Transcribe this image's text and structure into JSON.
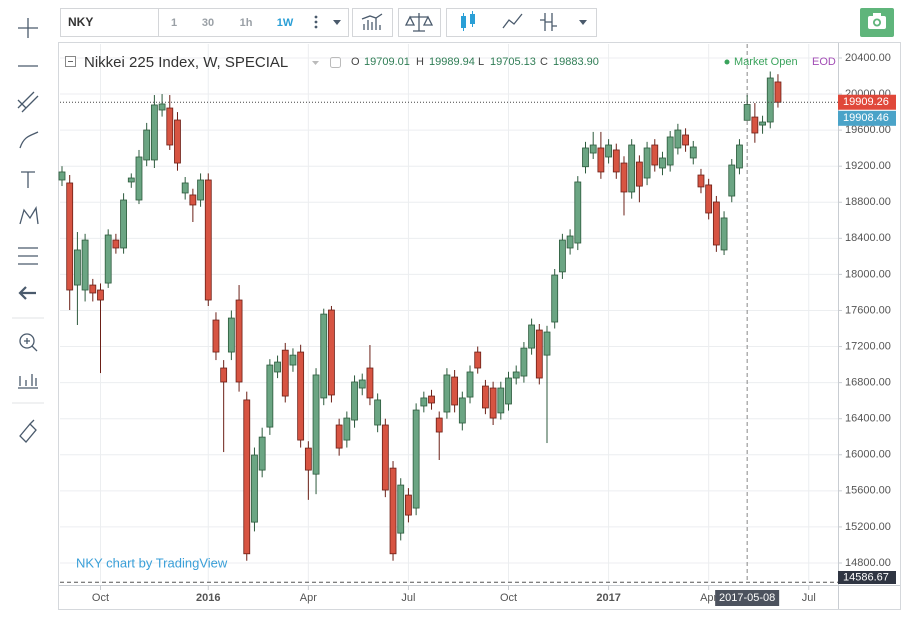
{
  "toolbar": {
    "symbol": "NKY",
    "intervals": [
      "1",
      "30",
      "1h",
      "1W"
    ]
  },
  "chart_data": {
    "type": "candlestick",
    "title": "Nikkei 225 Index, W, SPECIAL",
    "legend": {
      "labels": [
        "O",
        "H",
        "L",
        "C"
      ],
      "values": [
        "19709.01",
        "19989.94",
        "19705.13",
        "19883.90"
      ]
    },
    "market_status": "Market Open",
    "data_mode": "EOD",
    "watermark": "NKY chart by TradingView",
    "up_color": "#6ba583",
    "down_color": "#d75442",
    "categories": [
      null,
      null,
      null,
      null,
      null,
      null,
      null,
      null,
      null,
      null,
      null,
      null,
      null,
      null,
      null,
      null,
      null,
      null,
      null,
      null,
      null,
      null,
      null,
      null,
      null,
      null,
      null,
      null,
      null,
      null,
      null,
      null,
      null,
      null,
      null,
      null,
      null,
      null,
      null,
      null,
      null,
      null,
      null,
      null,
      null,
      null,
      null,
      null,
      null,
      null,
      null,
      null,
      null,
      null,
      null,
      null,
      null,
      null,
      null,
      null,
      null,
      null,
      null,
      null,
      null,
      null,
      null,
      null,
      null,
      null,
      null,
      null,
      null,
      null,
      null,
      null,
      null,
      null,
      null,
      null,
      null,
      null,
      null,
      null,
      null,
      null,
      null,
      null,
      null,
      "2017-05-08",
      null,
      null,
      null,
      null
    ],
    "open": [
      19047,
      19014,
      17882,
      17827,
      17882,
      17827,
      17904,
      18381,
      18293,
      19025,
      18825,
      19269,
      19269,
      19823,
      19845,
      19712,
      18903,
      18881,
      18825,
      19047,
      17494,
      16962,
      17139,
      17716,
      16608,
      15253,
      15830,
      16307,
      16918,
      17160,
      16995,
      17139,
      16074,
      15785,
      16630,
      17605,
      16330,
      16163,
      16385,
      16740,
      16962,
      16330,
      16330,
      15852,
      15131,
      15553,
      15409,
      16541,
      16651,
      16407,
      16474,
      16862,
      16352,
      16640,
      17139,
      16762,
      16740,
      16464,
      16563,
      16851,
      16873,
      17183,
      17383,
      17105,
      17472,
      18028,
      18293,
      18348,
      19194,
      19346,
      19402,
      19302,
      19380,
      19235,
      18914,
      19246,
      19069,
      19435,
      19180,
      19213,
      19402,
      19546,
      19291,
      19102,
      18992,
      18803,
      18271,
      18869,
      19180,
      19709.01,
      19745,
      19656,
      19690,
      20134
    ],
    "high": [
      19200,
      19102,
      18470,
      18450,
      17950,
      17900,
      18500,
      18450,
      18900,
      19120,
      19380,
      19680,
      19989,
      20000,
      19989,
      19800,
      19080,
      18950,
      19120,
      19120,
      17580,
      17050,
      17600,
      17882,
      16700,
      16080,
      16300,
      17060,
      17100,
      17240,
      17180,
      17220,
      16150,
      16960,
      17620,
      17650,
      16400,
      16480,
      16880,
      16900,
      17217,
      16680,
      16400,
      15930,
      15740,
      15630,
      16570,
      16700,
      16720,
      16480,
      16960,
      16940,
      16700,
      16990,
      17200,
      16830,
      16810,
      16810,
      16920,
      16990,
      17250,
      17510,
      17450,
      17430,
      18060,
      18450,
      18500,
      19090,
      19470,
      19580,
      19580,
      19500,
      19450,
      19310,
      19500,
      19320,
      19470,
      19500,
      19360,
      19590,
      19670,
      19620,
      19480,
      19170,
      19060,
      18870,
      18700,
      19280,
      19500,
      19989.94,
      19900,
      19760,
      20250,
      20220
    ],
    "low": [
      18980,
      17605,
      17439,
      17700,
      17700,
      16906,
      17850,
      18230,
      18230,
      18960,
      18780,
      19200,
      19180,
      19750,
      19380,
      19150,
      18830,
      18581,
      18750,
      17650,
      17050,
      16030,
      17050,
      16700,
      14825,
      15150,
      15750,
      16220,
      16850,
      16580,
      16920,
      16080,
      15500,
      15563,
      16550,
      16580,
      15990,
      16080,
      16300,
      16660,
      16550,
      16250,
      15530,
      14825,
      15050,
      15250,
      15330,
      16470,
      16500,
      15942,
      16400,
      16470,
      16270,
      16570,
      16900,
      16450,
      16330,
      16390,
      16490,
      16780,
      16800,
      17110,
      16780,
      16130,
      17400,
      17950,
      18220,
      18270,
      19120,
      19280,
      19060,
      19230,
      19060,
      18654,
      18840,
      18800,
      18990,
      19140,
      19100,
      19140,
      19330,
      19360,
      19220,
      18900,
      18610,
      18250,
      18215,
      18800,
      19110,
      19705.13,
      19460,
      19560,
      19620,
      19850
    ],
    "close": [
      19136,
      17827,
      18271,
      18381,
      17794,
      17716,
      18437,
      18293,
      18825,
      19069,
      19302,
      19601,
      19879,
      19890,
      19435,
      19235,
      19014,
      18770,
      19047,
      17716,
      17139,
      16807,
      17516,
      16807,
      14902,
      15997,
      16196,
      16995,
      17028,
      16651,
      17105,
      16163,
      15830,
      16885,
      17560,
      16663,
      16074,
      16407,
      16807,
      16829,
      16630,
      16608,
      15609,
      14902,
      15664,
      15331,
      16496,
      16630,
      16574,
      16252,
      16885,
      16552,
      16630,
      16918,
      16962,
      16519,
      16407,
      16740,
      16851,
      16918,
      17183,
      17439,
      16851,
      17361,
      17993,
      18381,
      18426,
      19025,
      19402,
      19435,
      19136,
      19435,
      19136,
      18914,
      19435,
      18979,
      19402,
      19213,
      19291,
      19524,
      19601,
      19435,
      19413,
      18970,
      18681,
      18326,
      18626,
      19213,
      19435,
      19883.9,
      19568,
      19690,
      20178,
      19909.26
    ],
    "price_lines": [
      {
        "value": 19909.26,
        "color": "#e0483a"
      },
      {
        "value": 19908.46,
        "color": "#4aa3c8"
      }
    ],
    "low_marker": 14586.67,
    "xlim": [
      -0.26,
      100.8
    ],
    "xticks": [
      {
        "value": 5,
        "label": "Oct"
      },
      {
        "value": 19,
        "label": "2016"
      },
      {
        "value": 32,
        "label": "Apr"
      },
      {
        "value": 45,
        "label": "Jul"
      },
      {
        "value": 58,
        "label": "Oct"
      },
      {
        "value": 71,
        "label": "2017"
      },
      {
        "value": 84,
        "label": "Apr"
      },
      {
        "value": 97,
        "label": "Jul"
      }
    ],
    "ylim": [
      14578,
      20555
    ],
    "yticks": [
      {
        "value": 14800,
        "label": "14800.00"
      },
      {
        "value": 15200,
        "label": "15200.00"
      },
      {
        "value": 15600,
        "label": "15600.00"
      },
      {
        "value": 16000,
        "label": "16000.00"
      },
      {
        "value": 16400,
        "label": "16400.00"
      },
      {
        "value": 16800,
        "label": "16800.00"
      },
      {
        "value": 17200,
        "label": "17200.00"
      },
      {
        "value": 17600,
        "label": "17600.00"
      },
      {
        "value": 18000,
        "label": "18000.00"
      },
      {
        "value": 18400,
        "label": "18400.00"
      },
      {
        "value": 18800,
        "label": "18800.00"
      },
      {
        "value": 19200,
        "label": "19200.00"
      },
      {
        "value": 19600,
        "label": "19600.00"
      },
      {
        "value": 20000,
        "label": "20000.00"
      },
      {
        "value": 20400,
        "label": "20400.00"
      }
    ],
    "grid": true
  }
}
